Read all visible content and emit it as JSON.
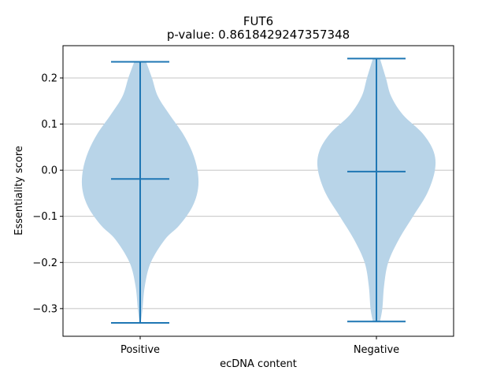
{
  "chart_data": {
    "type": "violin",
    "title": "FUT6",
    "subtitle": "p-value: 0.8618429247357348",
    "xlabel": "ecDNA content",
    "ylabel": "Essentiality score",
    "categories": [
      "Positive",
      "Negative"
    ],
    "ylim": [
      -0.36,
      0.27
    ],
    "yticks": [
      -0.3,
      -0.2,
      -0.1,
      0.0,
      0.1,
      0.2
    ],
    "ytick_labels": [
      "−0.3",
      "−0.2",
      "−0.1",
      "0.0",
      "0.1",
      "0.2"
    ],
    "grid": "horizontal",
    "colors": {
      "body": "#b8d4e8",
      "line": "#1f77b4"
    },
    "violins": [
      {
        "category": "Positive",
        "min": -0.331,
        "max": 0.235,
        "median": -0.019,
        "density": [
          [
            -0.331,
            0.01
          ],
          [
            -0.3,
            0.04
          ],
          [
            -0.25,
            0.08
          ],
          [
            -0.2,
            0.18
          ],
          [
            -0.15,
            0.42
          ],
          [
            -0.12,
            0.66
          ],
          [
            -0.08,
            0.88
          ],
          [
            -0.04,
            0.98
          ],
          [
            0.0,
            0.97
          ],
          [
            0.04,
            0.88
          ],
          [
            0.08,
            0.72
          ],
          [
            0.12,
            0.5
          ],
          [
            0.16,
            0.3
          ],
          [
            0.2,
            0.2
          ],
          [
            0.235,
            0.1
          ]
        ]
      },
      {
        "category": "Negative",
        "min": -0.328,
        "max": 0.242,
        "median": -0.003,
        "density": [
          [
            -0.328,
            0.06
          ],
          [
            -0.3,
            0.1
          ],
          [
            -0.25,
            0.13
          ],
          [
            -0.2,
            0.2
          ],
          [
            -0.15,
            0.38
          ],
          [
            -0.1,
            0.62
          ],
          [
            -0.05,
            0.86
          ],
          [
            0.0,
            0.99
          ],
          [
            0.04,
            0.97
          ],
          [
            0.08,
            0.78
          ],
          [
            0.12,
            0.45
          ],
          [
            0.16,
            0.25
          ],
          [
            0.2,
            0.16
          ],
          [
            0.242,
            0.06
          ]
        ]
      }
    ]
  }
}
